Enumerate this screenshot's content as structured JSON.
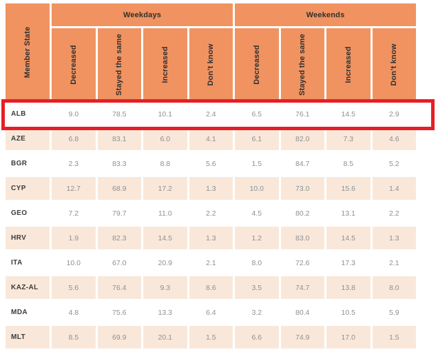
{
  "chart_data": {
    "type": "table",
    "corner_header": "Member State",
    "column_groups": [
      "Weekdays",
      "Weekends"
    ],
    "sub_columns": [
      "Decreased",
      "Stayed the same",
      "Increased",
      "Don’t know"
    ],
    "rows": [
      {
        "state": "ALB",
        "values": [
          9.0,
          78.5,
          10.1,
          2.4,
          6.5,
          76.1,
          14.5,
          2.9
        ],
        "highlighted": true
      },
      {
        "state": "AZE",
        "values": [
          6.8,
          83.1,
          6.0,
          4.1,
          6.1,
          82.0,
          7.3,
          4.6
        ],
        "highlighted": false
      },
      {
        "state": "BGR",
        "values": [
          2.3,
          83.3,
          8.8,
          5.6,
          1.5,
          84.7,
          8.5,
          5.2
        ],
        "highlighted": false
      },
      {
        "state": "CYP",
        "values": [
          12.7,
          68.9,
          17.2,
          1.3,
          10.0,
          73.0,
          15.6,
          1.4
        ],
        "highlighted": false
      },
      {
        "state": "GEO",
        "values": [
          7.2,
          79.7,
          11.0,
          2.2,
          4.5,
          80.2,
          13.1,
          2.2
        ],
        "highlighted": false
      },
      {
        "state": "HRV",
        "values": [
          1.9,
          82.3,
          14.5,
          1.3,
          1.2,
          83.0,
          14.5,
          1.3
        ],
        "highlighted": false
      },
      {
        "state": "ITA",
        "values": [
          10.0,
          67.0,
          20.9,
          2.1,
          8.0,
          72.6,
          17.3,
          2.1
        ],
        "highlighted": false
      },
      {
        "state": "KAZ-AL",
        "values": [
          5.6,
          76.4,
          9.3,
          8.6,
          3.5,
          74.7,
          13.8,
          8.0
        ],
        "highlighted": false
      },
      {
        "state": "MDA",
        "values": [
          4.8,
          75.6,
          13.3,
          6.4,
          3.2,
          80.4,
          10.5,
          5.9
        ],
        "highlighted": false
      },
      {
        "state": "MLT",
        "values": [
          8.5,
          69.9,
          20.1,
          1.5,
          6.6,
          74.9,
          17.0,
          1.5
        ],
        "highlighted": false
      }
    ],
    "value_precision": 1,
    "highlight": {
      "state": "ALB",
      "border_color": "#e61e25"
    },
    "colors": {
      "header_bg": "#f09361",
      "alt_row_bg": "#f9e8da",
      "highlight_border": "#e61e25",
      "header_text": "#2f2f2f",
      "label_text": "#3a3a3a",
      "number_text": "#8f8f8f",
      "page_bg": "#ffffff"
    },
    "layout_hints": {
      "row_shading": "alternating, first data row white",
      "sub_headers_rotated": true,
      "corner_header_rotated": true
    }
  }
}
